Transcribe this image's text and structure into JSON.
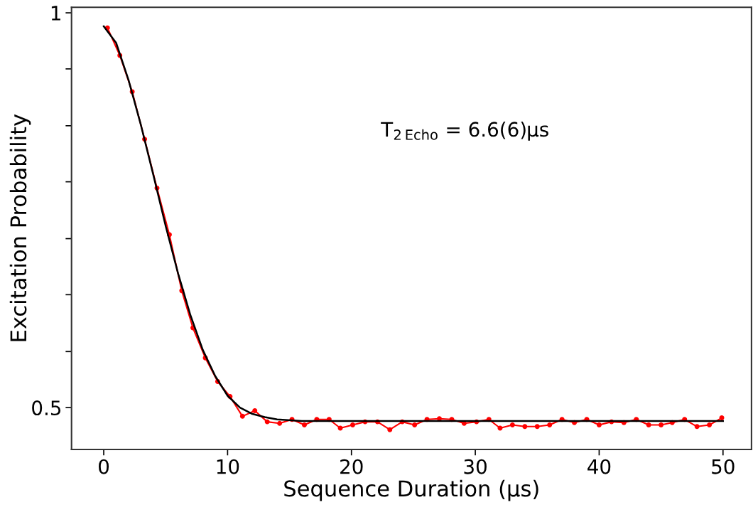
{
  "chart_data": {
    "type": "line",
    "xlabel": "Sequence Duration (µs)",
    "ylabel": "Excitation Probability",
    "annotations": [
      "T$_{2 Echo}$ = 6.6(6)µs"
    ],
    "xlim": [
      -2.6,
      52.3
    ],
    "xticks": [
      0,
      10,
      20,
      30,
      40,
      50
    ],
    "ylim": [
      0.447,
      1.007
    ],
    "yticks": [
      {
        "value": 0.5,
        "label": "0.5"
      },
      {
        "value": 0.571,
        "label": null
      },
      {
        "value": 0.643,
        "label": null
      },
      {
        "value": 0.714,
        "label": null
      },
      {
        "value": 0.786,
        "label": null
      },
      {
        "value": 0.857,
        "label": null
      },
      {
        "value": 0.929,
        "label": null
      },
      1
    ],
    "grid": false,
    "legend": false,
    "series": [
      {
        "color": "#ff0000",
        "marker": "circle",
        "line_style": "solid",
        "x": [
          0.3,
          1.3,
          2.3,
          3.3,
          4.3,
          5.3,
          6.3,
          7.2,
          8.2,
          9.2,
          10.2,
          11.2,
          12.2,
          13.2,
          14.2,
          15.2,
          16.2,
          17.2,
          18.2,
          19.1,
          20.1,
          21.1,
          22.1,
          23.1,
          24.1,
          25.1,
          26.1,
          27.1,
          28.1,
          29.1,
          30.1,
          31.1,
          32.0,
          33.0,
          34.0,
          35.0,
          36.0,
          37.0,
          38.0,
          39.0,
          40.0,
          41.0,
          42.0,
          43.0,
          44.0,
          45.0,
          45.9,
          46.9,
          47.9,
          48.9,
          49.9
        ],
        "values": [
          0.981,
          0.946,
          0.9,
          0.84,
          0.778,
          0.719,
          0.648,
          0.601,
          0.563,
          0.533,
          0.514,
          0.489,
          0.496,
          0.482,
          0.48,
          0.485,
          0.478,
          0.485,
          0.485,
          0.474,
          0.478,
          0.482,
          0.482,
          0.472,
          0.482,
          0.478,
          0.485,
          0.486,
          0.485,
          0.48,
          0.482,
          0.485,
          0.474,
          0.478,
          0.476,
          0.476,
          0.478,
          0.485,
          0.481,
          0.485,
          0.478,
          0.482,
          0.481,
          0.485,
          0.478,
          0.478,
          0.481,
          0.485,
          0.476,
          0.478,
          0.487
        ]
      },
      {
        "color": "#000000",
        "marker": "none",
        "line_style": "solid",
        "x": [
          0,
          1,
          2,
          3,
          4,
          5,
          6,
          7,
          8,
          9,
          10,
          11,
          12,
          13,
          14,
          16,
          20,
          30,
          40,
          50
        ],
        "values": [
          0.983,
          0.962,
          0.915,
          0.858,
          0.795,
          0.73,
          0.67,
          0.617,
          0.573,
          0.54,
          0.515,
          0.5,
          0.492,
          0.488,
          0.485,
          0.483,
          0.483,
          0.483,
          0.483,
          0.483
        ]
      }
    ]
  }
}
